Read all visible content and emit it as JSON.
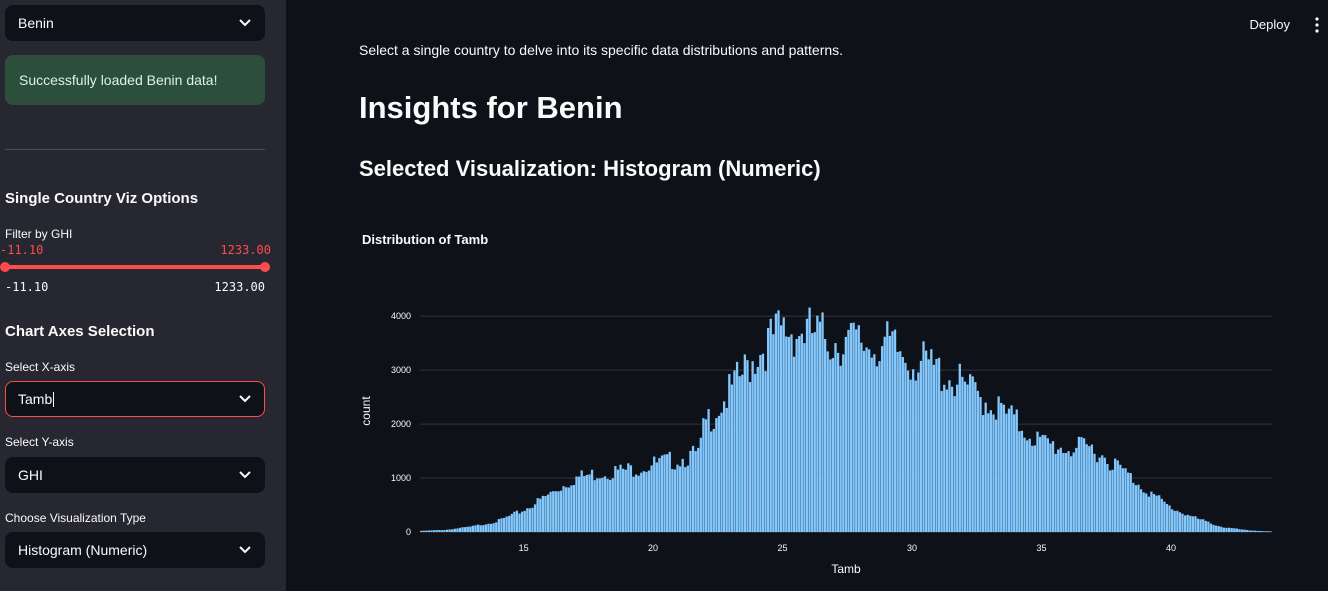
{
  "sidebar": {
    "country_select": "Benin",
    "success_message": "Successfully loaded Benin data!",
    "viz_options_heading": "Single Country Viz Options",
    "filter_label": "Filter by GHI",
    "filter_min": "-11.10",
    "filter_max": "1233.00",
    "axes_heading": "Chart Axes Selection",
    "x_axis_label": "Select X-axis",
    "x_axis_value": "Tamb",
    "y_axis_label": "Select Y-axis",
    "y_axis_value": "GHI",
    "viz_type_label": "Choose Visualization Type",
    "viz_type_value": "Histogram (Numeric)"
  },
  "header": {
    "deploy_label": "Deploy"
  },
  "main": {
    "intro": "Select a single country to delve into its specific data distributions and patterns.",
    "title": "Insights for Benin",
    "subtitle": "Selected Visualization: Histogram (Numeric)"
  },
  "chart_data": {
    "type": "bar",
    "title": "Distribution of Tamb",
    "xlabel": "Tamb",
    "ylabel": "count",
    "xlim": [
      11.0,
      43.9
    ],
    "ylim": [
      0,
      4300
    ],
    "xticks": [
      15,
      20,
      25,
      30,
      35,
      40
    ],
    "yticks": [
      0,
      1000,
      2000,
      3000,
      4000
    ],
    "bin_width": 0.1,
    "x": [
      11.0,
      12.0,
      13.0,
      14.0,
      15.0,
      16.0,
      17.0,
      18.0,
      19.0,
      20.0,
      21.0,
      21.8,
      22.0,
      23.0,
      24.0,
      25.0,
      26.0,
      27.0,
      28.0,
      29.0,
      30.0,
      31.0,
      32.0,
      33.0,
      34.0,
      35.0,
      36.0,
      37.0,
      38.0,
      39.0,
      40.0,
      41.0,
      42.0,
      43.0,
      43.9
    ],
    "values": [
      20,
      40,
      100,
      200,
      400,
      700,
      1000,
      1100,
      1150,
      1250,
      1350,
      1450,
      2000,
      2600,
      3300,
      3750,
      3700,
      3550,
      3500,
      3450,
      3200,
      3000,
      2700,
      2400,
      2050,
      1650,
      1550,
      1550,
      1200,
      800,
      450,
      250,
      90,
      30,
      10
    ],
    "bar_color": "#83c9ff",
    "grid": true
  }
}
